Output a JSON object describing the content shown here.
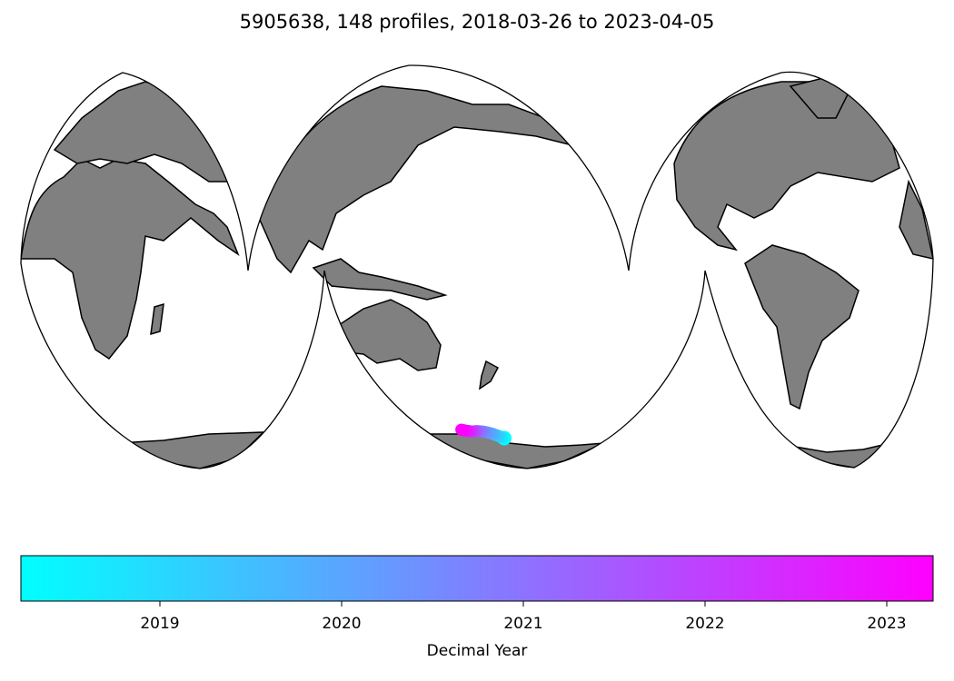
{
  "title": "5905638, 148 profiles, 2018-03-26 to 2023-04-05",
  "map": {
    "projection": "Interrupted Goode Homolosine",
    "land_color": "#808080",
    "ocean_color": "#ffffff",
    "track": {
      "float_id": "5905638",
      "profiles": 148,
      "start_date": "2018-03-26",
      "end_date": "2023-04-05",
      "region": "Southern Ocean, south of New Zealand",
      "start_year": 2018.23,
      "end_year": 2023.26
    }
  },
  "colorbar": {
    "label": "Decimal Year",
    "min": 2018.235,
    "max": 2023.255,
    "color_min": "#00ffff",
    "color_max": "#ff00ff",
    "ticks": [
      "2019",
      "2020",
      "2021",
      "2022",
      "2023"
    ]
  }
}
